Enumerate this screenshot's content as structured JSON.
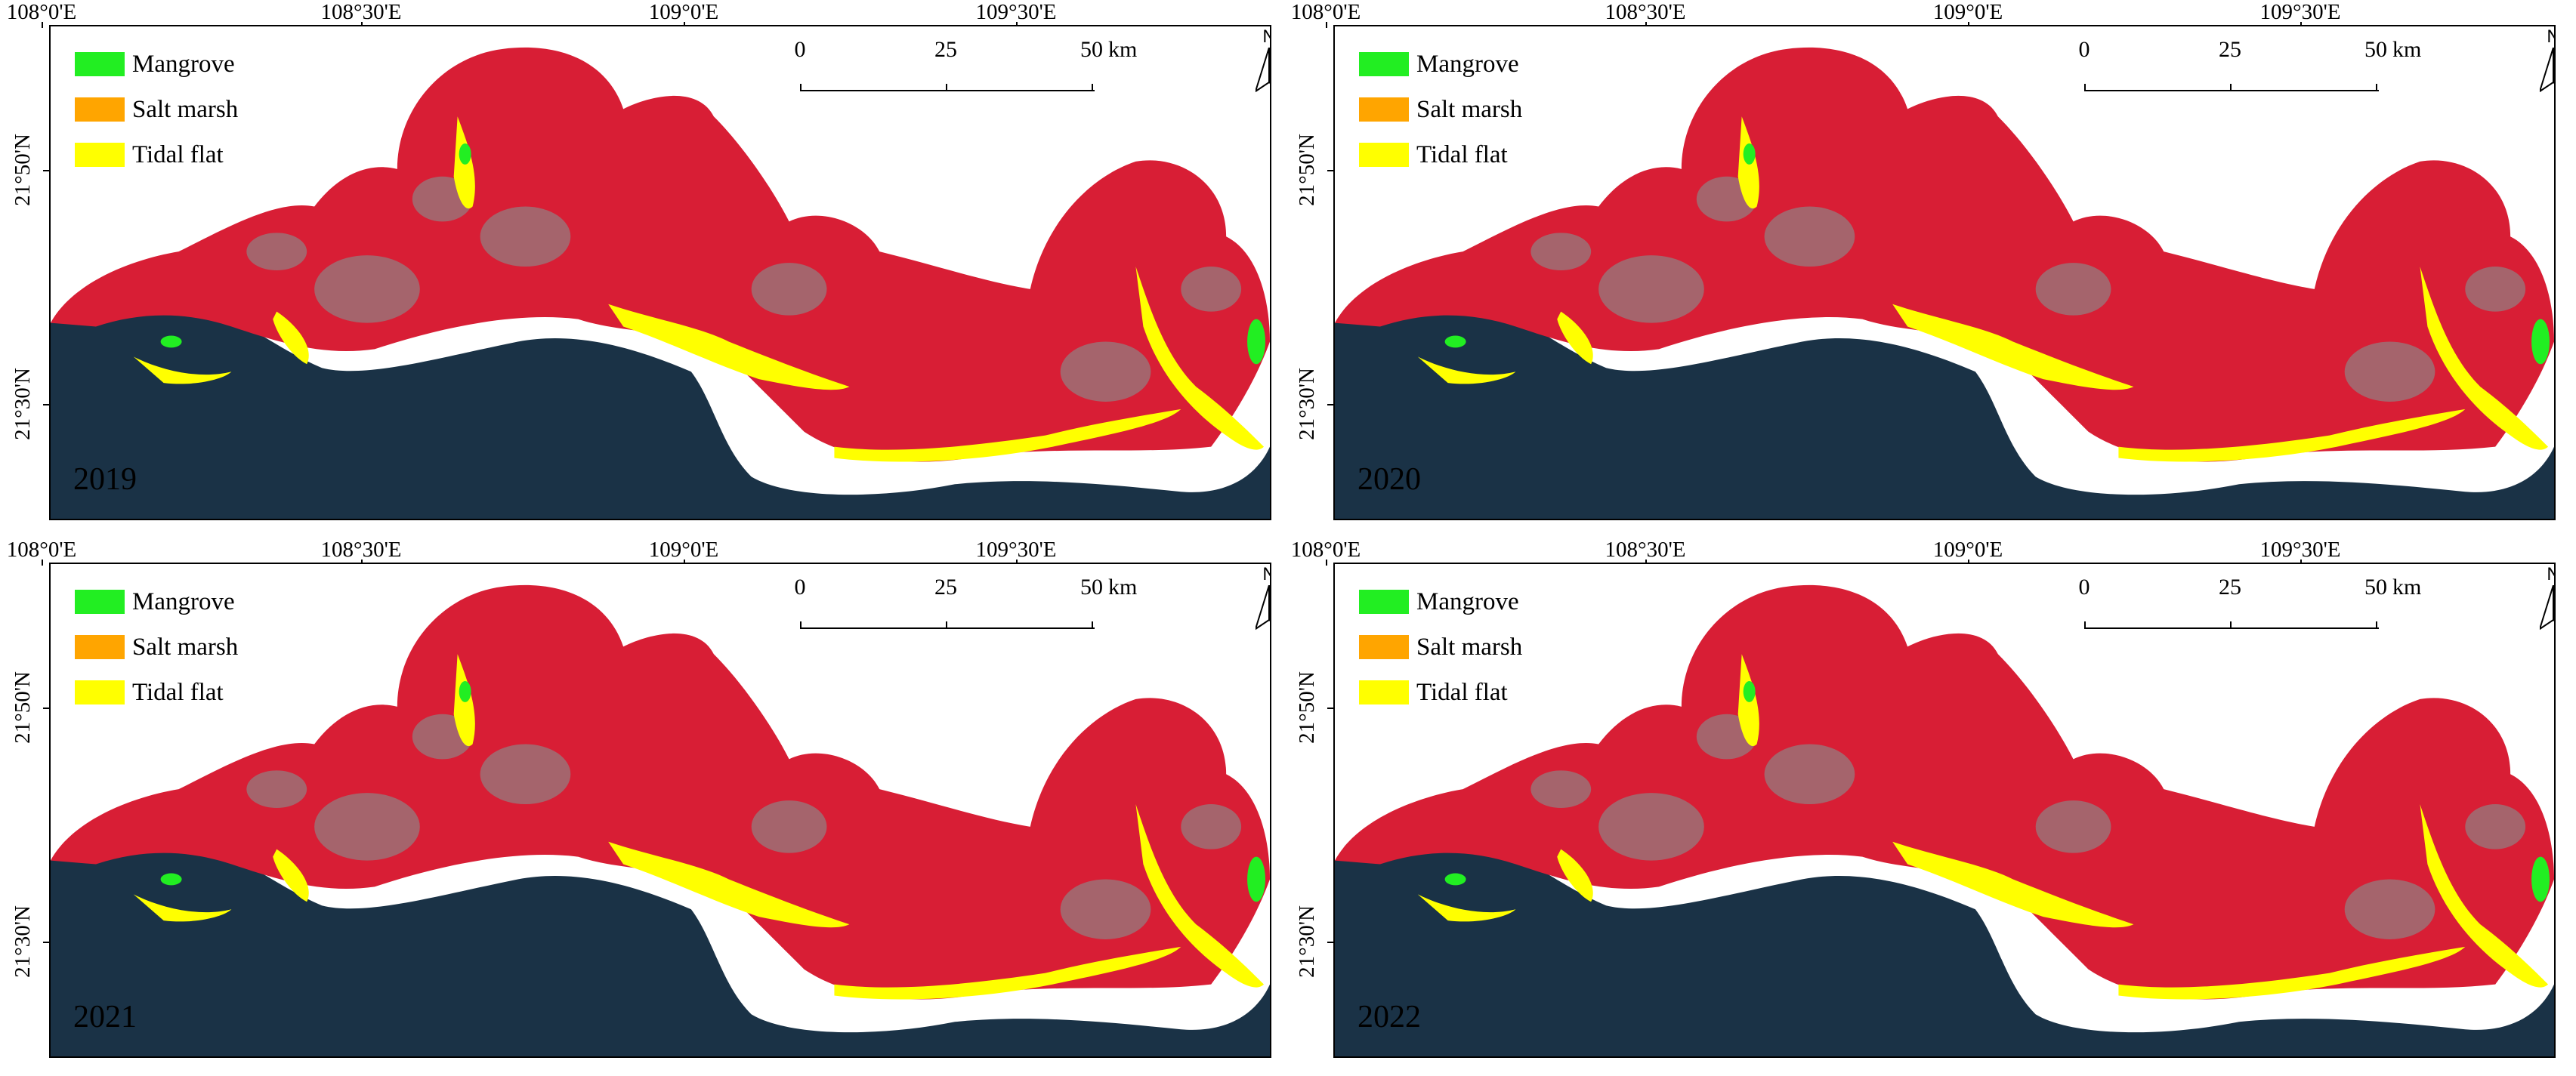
{
  "panels": [
    {
      "year": "2019"
    },
    {
      "year": "2020"
    },
    {
      "year": "2021"
    },
    {
      "year": "2022"
    }
  ],
  "graticule": {
    "longitudes": [
      "108°0'E",
      "108°30'E",
      "109°0'E",
      "109°30'E"
    ],
    "latitudes": [
      "21°50'N",
      "21°30'N"
    ]
  },
  "legend": [
    {
      "label": "Mangrove",
      "color": "#22ee22"
    },
    {
      "label": "Salt marsh",
      "color": "#ffa500"
    },
    {
      "label": "Tidal flat",
      "color": "#ffff00"
    }
  ],
  "scale_bar": {
    "ticks": [
      "0",
      "25",
      "50"
    ],
    "unit": "km"
  },
  "north_arrow": {
    "label": "N"
  },
  "colors": {
    "land": "#d81e35",
    "sea": "#1a3246",
    "urban": "#8a8a8a"
  }
}
